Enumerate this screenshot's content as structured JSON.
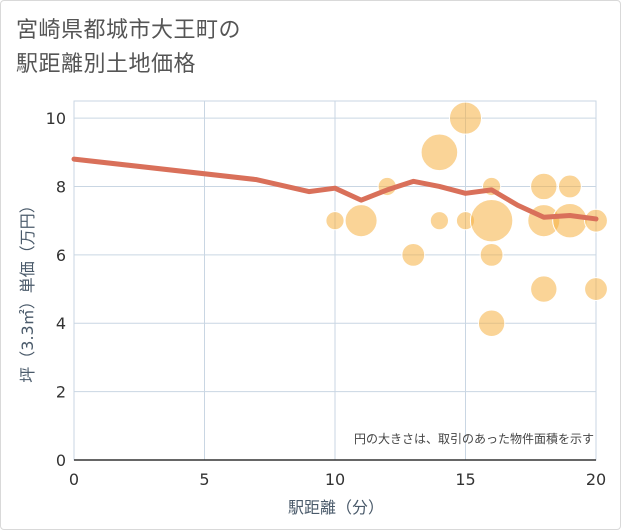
{
  "title_line1": "宮崎県都城市大王町の",
  "title_line2": "駅距離別土地価格",
  "chart_data": {
    "type": "scatter",
    "xlabel": "駅距離（分）",
    "ylabel": "坪（3.3㎡）単価（万円）",
    "xlim": [
      0,
      20
    ],
    "ylim": [
      0,
      10.5
    ],
    "xticks": [
      0,
      5,
      10,
      15,
      20
    ],
    "yticks": [
      0,
      2,
      4,
      6,
      8,
      10
    ],
    "grid": true,
    "annotation": "円の大きさは、取引のあった物件面積を示す",
    "colors": {
      "bubble": "#f5b041",
      "line": "#d9705a",
      "grid": "#c9d6e3"
    },
    "points": [
      {
        "x": 10,
        "y": 7.0,
        "size": 1
      },
      {
        "x": 11,
        "y": 7.0,
        "size": 5
      },
      {
        "x": 12,
        "y": 8.0,
        "size": 1
      },
      {
        "x": 13,
        "y": 6.0,
        "size": 2
      },
      {
        "x": 14,
        "y": 9.0,
        "size": 7
      },
      {
        "x": 14,
        "y": 7.0,
        "size": 1
      },
      {
        "x": 15,
        "y": 10.0,
        "size": 5
      },
      {
        "x": 15,
        "y": 7.0,
        "size": 1
      },
      {
        "x": 16,
        "y": 7.0,
        "size": 10
      },
      {
        "x": 16,
        "y": 8.0,
        "size": 1
      },
      {
        "x": 16,
        "y": 6.0,
        "size": 2
      },
      {
        "x": 16,
        "y": 4.0,
        "size": 3
      },
      {
        "x": 18,
        "y": 7.0,
        "size": 5
      },
      {
        "x": 18,
        "y": 8.0,
        "size": 3
      },
      {
        "x": 18,
        "y": 5.0,
        "size": 3
      },
      {
        "x": 19,
        "y": 7.0,
        "size": 6
      },
      {
        "x": 19,
        "y": 8.0,
        "size": 2
      },
      {
        "x": 20,
        "y": 7.0,
        "size": 2
      },
      {
        "x": 20,
        "y": 5.0,
        "size": 2
      }
    ],
    "trend": {
      "x": [
        0,
        7,
        9,
        10,
        11,
        12,
        13,
        14,
        15,
        16,
        17,
        18,
        19,
        20
      ],
      "y": [
        8.8,
        8.2,
        7.85,
        7.95,
        7.6,
        7.9,
        8.15,
        8.0,
        7.8,
        7.9,
        7.45,
        7.1,
        7.15,
        7.05
      ]
    }
  }
}
